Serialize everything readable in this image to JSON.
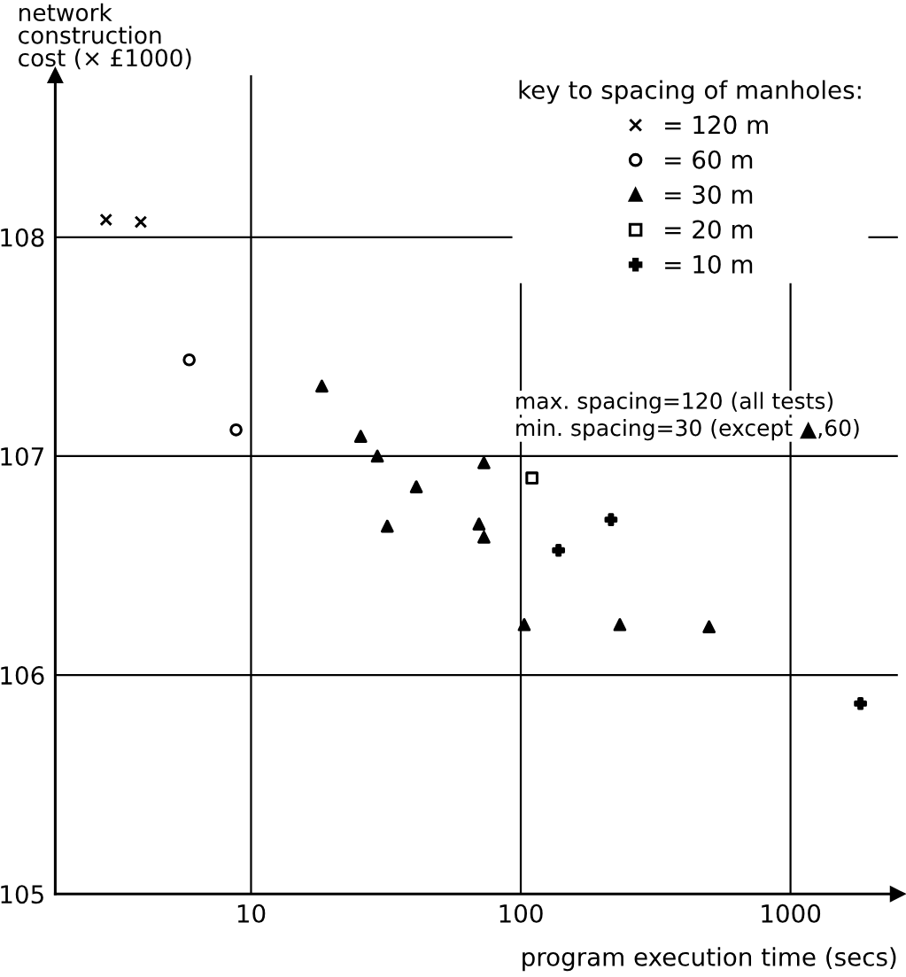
{
  "chart_data": {
    "type": "scatter",
    "xlabel": "program execution time (secs)",
    "ylabel": "network\nconstruction\ncost (× £1000)",
    "legend_title": "key to spacing of manholes:",
    "log": "x",
    "xlim": [
      1.88,
      2500
    ],
    "xticks": [
      10,
      100,
      1000
    ],
    "ylim": [
      105,
      108.74
    ],
    "yticks": [
      105,
      106,
      107,
      108
    ],
    "grid": true,
    "legend": "top right",
    "series": [
      {
        "name": "= 120 m",
        "color": "#000000",
        "marker": "cross",
        "x": [
          2.9,
          3.9
        ],
        "values": [
          108.08,
          108.07
        ]
      },
      {
        "name": "= 60 m",
        "color": "#000000",
        "marker": "circle",
        "x": [
          5.9,
          8.8
        ],
        "values": [
          107.44,
          107.12
        ]
      },
      {
        "name": "= 30 m",
        "color": "#000000",
        "marker": "triangle",
        "x": [
          18.3,
          25.5,
          29.4,
          32,
          41,
          70,
          73,
          73,
          103,
          233,
          499
        ],
        "values": [
          107.32,
          107.09,
          107.0,
          106.68,
          106.86,
          106.69,
          106.97,
          106.63,
          106.23,
          106.23,
          106.22
        ]
      },
      {
        "name": "= 20 m",
        "color": "#000000",
        "marker": "square",
        "x": [
          110
        ],
        "values": [
          106.9
        ]
      },
      {
        "name": "= 10 m",
        "color": "#000000",
        "marker": "plus",
        "x": [
          138,
          216,
          1817
        ],
        "values": [
          106.57,
          106.71,
          105.87
        ]
      }
    ],
    "annotations": [
      "max. spacing=120 (all tests)",
      "min. spacing=30 (except ▲,60)"
    ]
  }
}
